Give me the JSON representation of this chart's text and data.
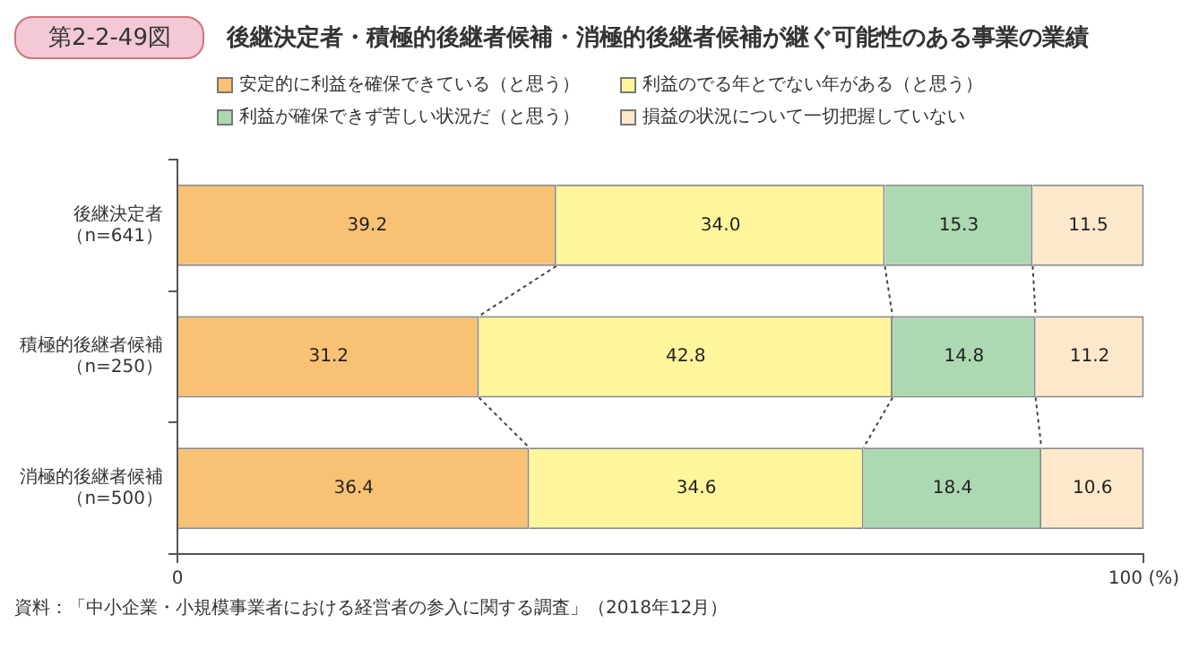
{
  "chart_data": {
    "type": "bar",
    "orientation": "horizontal",
    "stacked": true,
    "title": "後継決定者・積極的後継者候補・消極的後継者候補が継ぐ可能性のある事業の業績",
    "subtitle": "第2-2-49図",
    "categories": [
      "後継決定者（n=641）",
      "積極的後継者候補（n=250）",
      "消極的後継者候補（n=500）"
    ],
    "series": [
      {
        "name": "安定的に利益を確保できている（と思う）",
        "color": "#f8c173",
        "values": [
          39.2,
          31.2,
          36.4
        ],
        "value_labels": [
          "39.2",
          "31.2",
          "36.4"
        ]
      },
      {
        "name": "利益のでる年とでない年がある（と思う）",
        "color": "#fff59b",
        "values": [
          34.0,
          42.8,
          34.6
        ],
        "value_labels": [
          "34.0",
          "42.8",
          "34.6"
        ]
      },
      {
        "name": "利益が確保できず苦しい状況だ（と思う）",
        "color": "#acd9b2",
        "values": [
          15.3,
          14.8,
          18.4
        ],
        "value_labels": [
          "15.3",
          "14.8",
          "18.4"
        ]
      },
      {
        "name": "損益の状況について一切把握していない",
        "color": "#fde8cc",
        "values": [
          11.5,
          11.2,
          10.6
        ],
        "value_labels": [
          "11.5",
          "11.2",
          "10.6"
        ]
      }
    ],
    "xlim": [
      0,
      100
    ],
    "xticks": [
      0,
      {
        "value": 100,
        "label": "100 (%)"
      }
    ],
    "legend": "top",
    "annotations": [
      "資料：「中小企業・小規模事業者における経営者の参入に関する調査」（2018年12月）"
    ]
  }
}
